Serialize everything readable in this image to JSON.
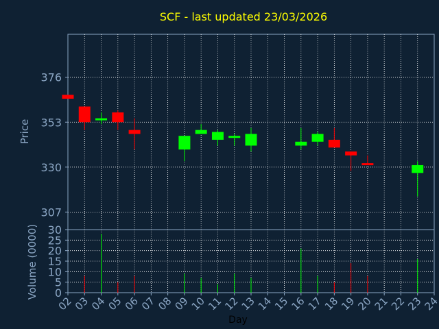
{
  "chart_data": {
    "type": "candlestick",
    "title": "SCF - last updated 23/03/2026",
    "price_panel": {
      "ylabel": "Price",
      "yticks": [
        307,
        330,
        353,
        376
      ],
      "ylim": [
        298,
        398
      ]
    },
    "volume_panel": {
      "ylabel": "Volume (0000)",
      "yticks": [
        0,
        5,
        10,
        15,
        20,
        25,
        30
      ],
      "ylim": [
        0,
        30
      ]
    },
    "xlabel": "Day",
    "x_ticks": [
      "02",
      "03",
      "04",
      "05",
      "06",
      "07",
      "08",
      "09",
      "10",
      "11",
      "12",
      "13",
      "14",
      "15",
      "16",
      "17",
      "18",
      "19",
      "20",
      "21",
      "22",
      "23",
      "24"
    ],
    "grid": true,
    "colors": {
      "up": "#00ff00",
      "down": "#ff0000",
      "grid": "#ffffff",
      "axis": "#8ba6c4",
      "title": "#ffff00",
      "background": "#0f2133",
      "plot_background": "#0f2133"
    },
    "candles": [
      {
        "day": "02",
        "open": 367,
        "close": 365,
        "high": 367,
        "low": 365,
        "volume": 0
      },
      {
        "day": "03",
        "open": 361,
        "close": 353,
        "high": 361,
        "low": 349,
        "volume": 8
      },
      {
        "day": "04",
        "open": 354,
        "close": 355,
        "high": 358,
        "low": 352,
        "volume": 28
      },
      {
        "day": "05",
        "open": 358,
        "close": 353,
        "high": 359,
        "low": 349,
        "volume": 5
      },
      {
        "day": "06",
        "open": 349,
        "close": 347,
        "high": 355,
        "low": 339,
        "volume": 8
      },
      {
        "day": "09",
        "open": 339,
        "close": 346,
        "high": 346,
        "low": 333,
        "volume": 9
      },
      {
        "day": "10",
        "open": 347,
        "close": 349,
        "high": 352,
        "low": 347,
        "volume": 7
      },
      {
        "day": "11",
        "open": 344,
        "close": 348,
        "high": 349,
        "low": 341,
        "volume": 4
      },
      {
        "day": "12",
        "open": 345,
        "close": 346,
        "high": 347,
        "low": 341,
        "volume": 9
      },
      {
        "day": "13",
        "open": 341,
        "close": 347,
        "high": 350,
        "low": 338,
        "volume": 7
      },
      {
        "day": "16",
        "open": 341,
        "close": 343,
        "high": 350,
        "low": 339,
        "volume": 21
      },
      {
        "day": "17",
        "open": 343,
        "close": 347,
        "high": 348,
        "low": 341,
        "volume": 8
      },
      {
        "day": "18",
        "open": 344,
        "close": 340,
        "high": 350,
        "low": 340,
        "volume": 5
      },
      {
        "day": "19",
        "open": 338,
        "close": 336,
        "high": 338,
        "low": 328,
        "volume": 14
      },
      {
        "day": "20",
        "open": 332,
        "close": 331,
        "high": 336,
        "low": 331,
        "volume": 8
      },
      {
        "day": "23",
        "open": 327,
        "close": 331,
        "high": 333,
        "low": 315,
        "volume": 16
      }
    ]
  }
}
